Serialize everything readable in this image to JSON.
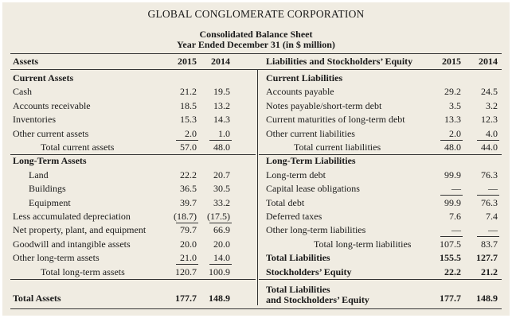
{
  "title": "GLOBAL CONGLOMERATE CORPORATION",
  "subtitle1": "Consolidated Balance Sheet",
  "subtitle2": "Year Ended December 31 (in $ million)",
  "assets_header": "Assets",
  "liab_header": "Liabilities and Stockholders’ Equity",
  "years": [
    "2015",
    "2014"
  ],
  "left": [
    {
      "label": "Current Assets",
      "bold": true
    },
    {
      "label": "Cash",
      "v1": "21.2",
      "v2": "19.5"
    },
    {
      "label": "Accounts receivable",
      "v1": "18.5",
      "v2": "13.2"
    },
    {
      "label": "Inventories",
      "v1": "15.3",
      "v2": "14.3"
    },
    {
      "label": "Other current assets",
      "v1": "2.0",
      "v2": "1.0",
      "ul": true
    },
    {
      "label": "Total current assets",
      "v1": "57.0",
      "v2": "48.0",
      "indent": 2,
      "sep": true
    },
    {
      "label": "Long-Term Assets",
      "bold": true
    },
    {
      "label": "Land",
      "v1": "22.2",
      "v2": "20.7",
      "indent": 1
    },
    {
      "label": "Buildings",
      "v1": "36.5",
      "v2": "30.5",
      "indent": 1
    },
    {
      "label": "Equipment",
      "v1": "39.7",
      "v2": "33.2",
      "indent": 1
    },
    {
      "label": "Less accumulated depreciation",
      "v1": "(18.7)",
      "v2": "(17.5)",
      "ul": true
    },
    {
      "label": "Net property, plant, and equipment",
      "v1": "79.7",
      "v2": "66.9"
    },
    {
      "label": "Goodwill and intangible assets",
      "v1": "20.0",
      "v2": "20.0"
    },
    {
      "label": "Other long-term assets",
      "v1": "21.0",
      "v2": "14.0",
      "ul": true
    },
    {
      "label": "Total long-term assets",
      "v1": "120.7",
      "v2": "100.9",
      "indent": 2,
      "sep": true
    }
  ],
  "right": [
    {
      "label": "Current Liabilities",
      "bold": true
    },
    {
      "label": "Accounts payable",
      "v1": "29.2",
      "v2": "24.5"
    },
    {
      "label": "Notes payable/short-term debt",
      "v1": "3.5",
      "v2": "3.2"
    },
    {
      "label": "Current maturities of long-term debt",
      "v1": "13.3",
      "v2": "12.3"
    },
    {
      "label": "Other current liabilities",
      "v1": "2.0",
      "v2": "4.0",
      "ul": true
    },
    {
      "label": "Total current liabilities",
      "v1": "48.0",
      "v2": "44.0",
      "indent": 2,
      "sep": true
    },
    {
      "label": "Long-Term Liabilities",
      "bold": true
    },
    {
      "label": "Long-term debt",
      "v1": "99.9",
      "v2": "76.3"
    },
    {
      "label": "Capital lease obligations",
      "v1": "—",
      "v2": "—",
      "ul": true
    },
    {
      "label": "Total debt",
      "v1": "99.9",
      "v2": "76.3"
    },
    {
      "label": "Deferred taxes",
      "v1": "7.6",
      "v2": "7.4"
    },
    {
      "label": "Other long-term liabilities",
      "v1": "—",
      "v2": "—",
      "ul": true
    },
    {
      "label": "Total long-term liabilities",
      "v1": "107.5",
      "v2": "83.7",
      "indent": 3
    },
    {
      "label": "Total Liabilities",
      "v1": "155.5",
      "v2": "127.7",
      "bold": true
    },
    {
      "label": "Stockholders’ Equity",
      "v1": "22.2",
      "v2": "21.2",
      "bold": true,
      "sep": true
    }
  ],
  "total_assets": {
    "label": "Total Assets",
    "v1": "177.7",
    "v2": "148.9"
  },
  "total_liab_equity": {
    "label1": "Total Liabilities",
    "label2": "and Stockholders’ Equity",
    "v1": "177.7",
    "v2": "148.9"
  }
}
